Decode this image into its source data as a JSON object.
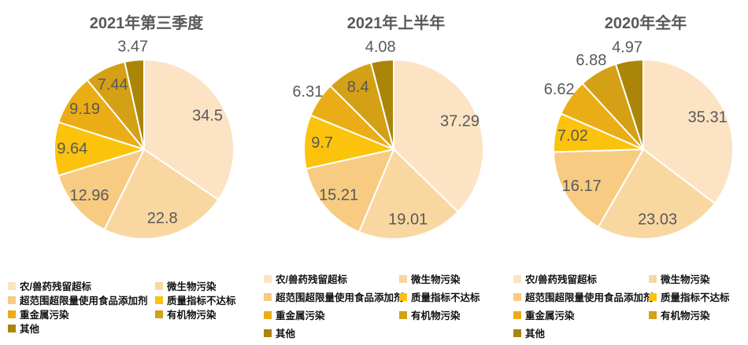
{
  "page": {
    "background": "#ffffff",
    "value_label_color": "#595959",
    "title_color": "#595959"
  },
  "chart_data": [
    {
      "type": "pie",
      "title": "2021年第三季度",
      "legend_position": "bottom",
      "start_angle": "top",
      "direction": "clockwise",
      "categories": [
        "农/兽药残留超标",
        "微生物污染",
        "超范围超限量使用食品添加剂",
        "质量指标不达标",
        "重金属污染",
        "有机物污染",
        "其他"
      ],
      "values": [
        34.5,
        22.8,
        12.96,
        9.64,
        9.19,
        7.44,
        3.47
      ],
      "value_labels": [
        "34.5",
        "22.8",
        "12.96",
        "9.64",
        "9.19",
        "7.44",
        "3.47"
      ],
      "colors": [
        "#FBE3C4",
        "#F9D7A1",
        "#F8CB82",
        "#FCC30D",
        "#EBAD15",
        "#D4A015",
        "#AB8508"
      ]
    },
    {
      "type": "pie",
      "title": "2021年上半年",
      "legend_position": "bottom",
      "start_angle": "top",
      "direction": "clockwise",
      "categories": [
        "农/兽药残留超标",
        "微生物污染",
        "超范围超限量使用食品添加剂",
        "质量指标不达标",
        "重金属污染",
        "有机物污染",
        "其他"
      ],
      "values": [
        37.29,
        19.01,
        15.21,
        9.7,
        6.31,
        8.4,
        4.08
      ],
      "value_labels": [
        "37.29",
        "19.01",
        "15.21",
        "9.7",
        "6.31",
        "8.4",
        "4.08"
      ],
      "colors": [
        "#FBE3C4",
        "#F9D7A1",
        "#F8CB82",
        "#FCC30D",
        "#EBAD15",
        "#D4A015",
        "#AB8508"
      ]
    },
    {
      "type": "pie",
      "title": "2020年全年",
      "legend_position": "bottom",
      "start_angle": "top",
      "direction": "clockwise",
      "categories": [
        "农/兽药残留超标",
        "微生物污染",
        "超范围超限量使用食品添加剂",
        "质量指标不达标",
        "重金属污染",
        "有机物污染",
        "其他"
      ],
      "values": [
        35.31,
        23.03,
        16.17,
        7.02,
        6.62,
        6.88,
        4.97
      ],
      "value_labels": [
        "35.31",
        "23.03",
        "16.17",
        "7.02",
        "6.62",
        "6.88",
        "4.97"
      ],
      "colors": [
        "#FBE3C4",
        "#F9D7A1",
        "#F8CB82",
        "#FCC30D",
        "#EBAD15",
        "#D4A015",
        "#AB8508"
      ]
    }
  ]
}
